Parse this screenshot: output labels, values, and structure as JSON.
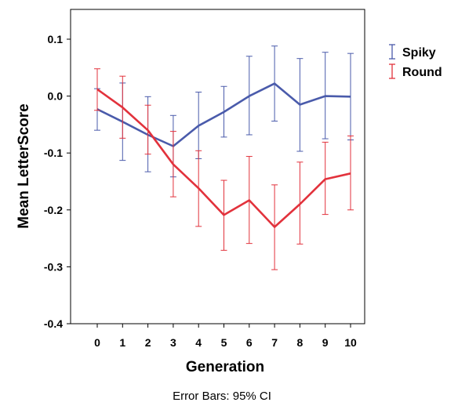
{
  "chart_data": {
    "type": "line",
    "xlabel": "Generation",
    "ylabel": "Mean LetterScore",
    "x": [
      0,
      1,
      2,
      3,
      4,
      5,
      6,
      7,
      8,
      9,
      10
    ],
    "x_tick_labels": [
      "0",
      "1",
      "2",
      "3",
      "4",
      "5",
      "6",
      "7",
      "8",
      "9",
      "10"
    ],
    "ylim": [
      -0.4,
      0.15
    ],
    "y_ticks": [
      -0.4,
      -0.3,
      -0.2,
      -0.1,
      0.0,
      0.1
    ],
    "y_tick_labels": [
      "-0.4",
      "-0.3",
      "-0.2",
      "-0.1",
      "0.0",
      "0.1"
    ],
    "grid": false,
    "legend_position": "top-right, outside plot",
    "footnote": "Error Bars: 95% CI",
    "series": [
      {
        "name": "Spiky",
        "color": "#4a5bab",
        "values": [
          -0.023,
          -0.045,
          -0.068,
          -0.088,
          -0.052,
          -0.028,
          0.0,
          0.022,
          -0.015,
          0.0,
          -0.001
        ],
        "ci_low": [
          -0.06,
          -0.113,
          -0.133,
          -0.142,
          -0.11,
          -0.072,
          -0.068,
          -0.044,
          -0.097,
          -0.075,
          -0.077
        ],
        "ci_high": [
          0.013,
          0.023,
          -0.001,
          -0.034,
          0.007,
          0.017,
          0.07,
          0.088,
          0.066,
          0.077,
          0.075
        ]
      },
      {
        "name": "Round",
        "color": "#e2323c",
        "values": [
          0.012,
          -0.02,
          -0.06,
          -0.12,
          -0.162,
          -0.209,
          -0.183,
          -0.23,
          -0.19,
          -0.146,
          -0.136
        ],
        "ci_low": [
          -0.025,
          -0.074,
          -0.102,
          -0.177,
          -0.229,
          -0.271,
          -0.259,
          -0.305,
          -0.26,
          -0.208,
          -0.2
        ],
        "ci_high": [
          0.048,
          0.035,
          -0.016,
          -0.062,
          -0.096,
          -0.148,
          -0.106,
          -0.156,
          -0.116,
          -0.081,
          -0.07
        ]
      }
    ]
  }
}
